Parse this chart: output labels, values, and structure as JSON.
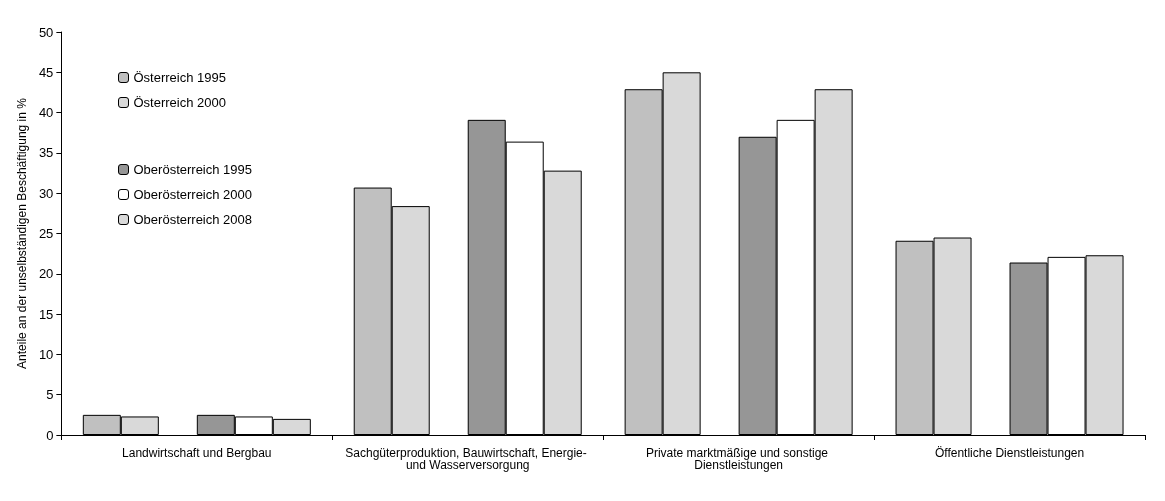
{
  "chart_data": {
    "type": "bar",
    "ylabel": "Anteile an der unselbständigen Beschäftigung in %",
    "categories": [
      "Landwirtschaft und Bergbau",
      "Sachgüterproduktion, Bauwirtschaft, Energie- und Wasserversorgung",
      "Private marktmäßige und sonstige Dienstleistungen",
      "Öffentliche Dienstleistungen"
    ],
    "series": [
      {
        "name": "Österreich 1995",
        "color": "#c0c0c0",
        "values": [
          2.5,
          30.7,
          42.9,
          24.1
        ]
      },
      {
        "name": "Österreich 2000",
        "color": "#d9d9d9",
        "values": [
          2.3,
          28.4,
          45.0,
          24.5
        ]
      },
      {
        "name": "Oberösterreich 1995",
        "color": "#969696",
        "values": [
          2.5,
          39.1,
          37.0,
          21.4
        ]
      },
      {
        "name": "Oberösterreich 2000",
        "color": "#ffffff",
        "values": [
          2.3,
          36.4,
          39.1,
          22.1
        ]
      },
      {
        "name": "Oberösterreich 2008",
        "color": "#d9d9d9",
        "values": [
          2.0,
          32.8,
          42.9,
          22.3
        ]
      }
    ],
    "ylim": [
      0,
      50
    ],
    "yticks": [
      0,
      5,
      10,
      15,
      20,
      25,
      30,
      35,
      40,
      45,
      50
    ],
    "grid": false,
    "legend": "top left"
  }
}
